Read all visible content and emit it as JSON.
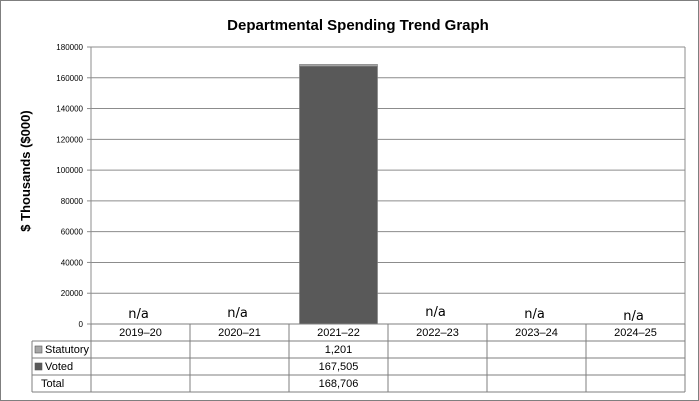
{
  "chart_data": {
    "type": "bar",
    "title": "Departmental Spending Trend Graph",
    "xlabel": "",
    "ylabel": "$ Thousands ($000)",
    "ylim": [
      0,
      180000
    ],
    "yticks": [
      "0",
      "20000",
      "40000",
      "60000",
      "80000",
      "100000",
      "120000",
      "140000",
      "160000",
      "180000"
    ],
    "grid": true,
    "stacked": true,
    "categories": [
      "2019–20",
      "2020–21",
      "2021–22",
      "2022–23",
      "2023–24",
      "2024–25"
    ],
    "na_label": "n/a",
    "series": [
      {
        "name": "Statutory",
        "color": "#a6a6a6",
        "values": [
          null,
          null,
          1201,
          null,
          null,
          null
        ],
        "labels": [
          "",
          "",
          "1,201",
          "",
          "",
          ""
        ]
      },
      {
        "name": "Voted",
        "color": "#595959",
        "values": [
          null,
          null,
          167505,
          null,
          null,
          null
        ],
        "labels": [
          "",
          "",
          "167,505",
          "",
          "",
          ""
        ]
      }
    ],
    "total": {
      "name": "Total",
      "labels": [
        "",
        "",
        "168,706",
        "",
        "",
        ""
      ]
    },
    "legend": "data-table"
  }
}
